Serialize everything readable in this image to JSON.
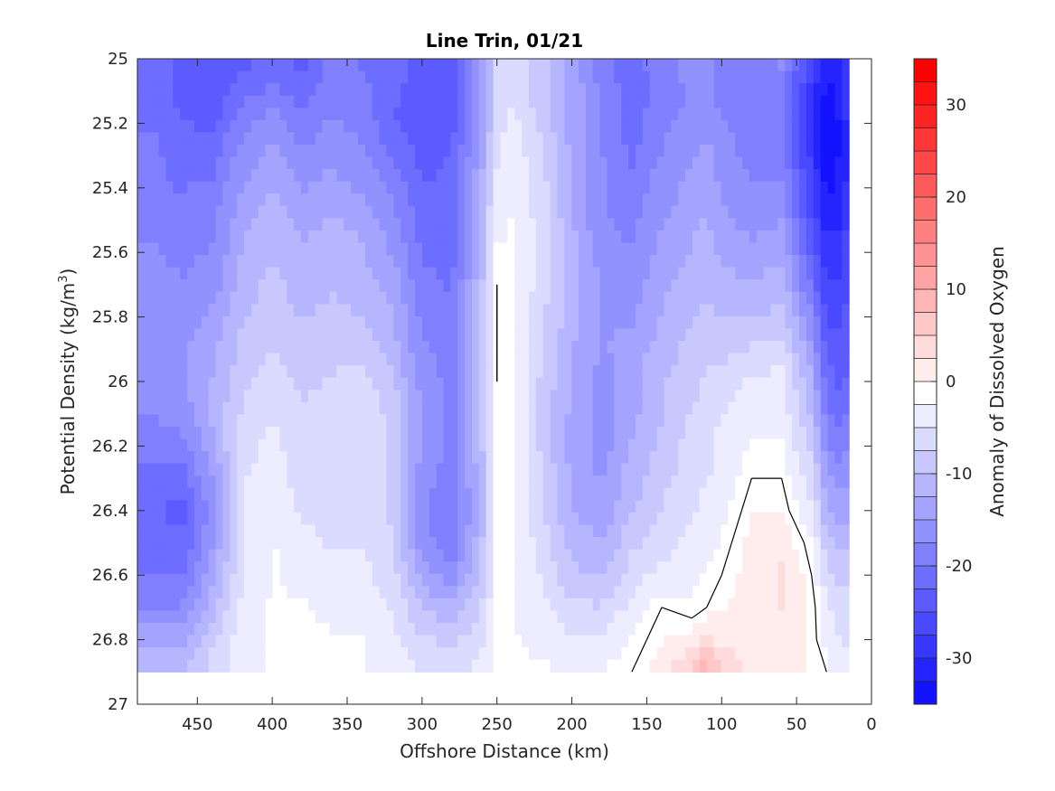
{
  "chart_data": {
    "type": "heatmap",
    "title": "Line Trin, 01/21",
    "xlabel": "Offshore Distance (km)",
    "ylabel": "Potential Density (kg/m",
    "ylabel_sup": "3",
    "ylabel_close": ")",
    "colorbar_label": "Anomaly of Dissolved Oxygen",
    "xlim": [
      490,
      0
    ],
    "ylim": [
      25,
      27
    ],
    "x_reversed": true,
    "y_reversed": true,
    "x_ticks": [
      450,
      400,
      350,
      300,
      250,
      200,
      150,
      100,
      50,
      0
    ],
    "y_ticks": [
      25,
      25.2,
      25.4,
      25.6,
      25.8,
      26,
      26.2,
      26.4,
      26.6,
      26.8,
      27
    ],
    "y_tick_labels": [
      "25",
      "25.2",
      "25.4",
      "25.6",
      "25.8",
      "26",
      "26.2",
      "26.4",
      "26.6",
      "26.8",
      "27"
    ],
    "colorbar_ticks": [
      30,
      20,
      10,
      0,
      -10,
      -20,
      -30
    ],
    "clim": [
      -35,
      35
    ],
    "colormap": "blue-white-red",
    "colors": {
      "min": "#0000ff",
      "mid": "#ffffff",
      "max": "#ff0000"
    },
    "x": [
      480,
      460,
      440,
      420,
      400,
      380,
      360,
      340,
      320,
      300,
      280,
      260,
      250,
      240,
      220,
      200,
      180,
      160,
      140,
      120,
      110,
      100,
      80,
      60,
      40,
      30,
      20,
      15
    ],
    "y": [
      25.0,
      25.1,
      25.2,
      25.3,
      25.4,
      25.5,
      25.6,
      25.7,
      25.8,
      25.9,
      26.0,
      26.1,
      26.2,
      26.3,
      26.4,
      26.5,
      26.6,
      26.7,
      26.8,
      26.9
    ],
    "z": [
      [
        -20,
        -22,
        -23,
        -22,
        -21,
        -22,
        -18,
        -19,
        -20,
        -22,
        -22,
        -12,
        -6,
        -5,
        -8,
        -12,
        -18,
        -20,
        -17,
        -15,
        -15,
        -17,
        -18,
        -16,
        -26,
        -31,
        -29,
        -25
      ],
      [
        -20,
        -22,
        -23,
        -20,
        -18,
        -20,
        -17,
        -18,
        -21,
        -22,
        -22,
        -13,
        -6,
        -4,
        -8,
        -12,
        -17,
        -20,
        -18,
        -16,
        -16,
        -17,
        -18,
        -17,
        -27,
        -32,
        -30,
        -26
      ],
      [
        -19,
        -21,
        -22,
        -17,
        -15,
        -18,
        -16,
        -17,
        -21,
        -23,
        -22,
        -13,
        -5,
        -3,
        -7,
        -12,
        -17,
        -20,
        -17,
        -15,
        -14,
        -16,
        -18,
        -17,
        -28,
        -33,
        -31,
        -27
      ],
      [
        -18,
        -20,
        -20,
        -15,
        -13,
        -16,
        -14,
        -16,
        -19,
        -22,
        -21,
        -12,
        -4,
        -2,
        -6,
        -12,
        -16,
        -19,
        -16,
        -14,
        -13,
        -15,
        -17,
        -17,
        -27,
        -33,
        -31,
        -28
      ],
      [
        -18,
        -19,
        -18,
        -14,
        -11,
        -14,
        -13,
        -14,
        -17,
        -21,
        -21,
        -11,
        -3,
        -2,
        -5,
        -11,
        -16,
        -18,
        -15,
        -13,
        -12,
        -14,
        -16,
        -16,
        -26,
        -32,
        -30,
        -27
      ],
      [
        -17,
        -18,
        -17,
        -12,
        -10,
        -12,
        -11,
        -12,
        -15,
        -20,
        -20,
        -10,
        -2,
        -1,
        -5,
        -11,
        -16,
        -17,
        -14,
        -12,
        -11,
        -13,
        -15,
        -14,
        -24,
        -30,
        -29,
        -25
      ],
      [
        -16,
        -17,
        -16,
        -11,
        -9,
        -11,
        -10,
        -11,
        -14,
        -19,
        -20,
        -10,
        -1,
        -1,
        -5,
        -10,
        -15,
        -16,
        -13,
        -11,
        -10,
        -12,
        -13,
        -12,
        -22,
        -28,
        -27,
        -24
      ],
      [
        -15,
        -16,
        -15,
        -10,
        -8,
        -10,
        -9,
        -10,
        -12,
        -18,
        -19,
        -9,
        0,
        -1,
        -5,
        -10,
        -14,
        -15,
        -12,
        -10,
        -9,
        -10,
        -11,
        -10,
        -19,
        -26,
        -26,
        -23
      ],
      [
        -14,
        -15,
        -13,
        -9,
        -7,
        -9,
        -8,
        -9,
        -11,
        -17,
        -18,
        -9,
        0,
        -1,
        -6,
        -10,
        -14,
        -14,
        -11,
        -9,
        -8,
        -9,
        -9,
        -8,
        -16,
        -24,
        -25,
        -22
      ],
      [
        -14,
        -14,
        -12,
        -8,
        -6,
        -8,
        -7,
        -7,
        -10,
        -16,
        -17,
        -8,
        0,
        -1,
        -6,
        -11,
        -14,
        -13,
        -10,
        -8,
        -7,
        -7,
        -6,
        -5,
        -13,
        -22,
        -23,
        -21
      ],
      [
        -15,
        -14,
        -11,
        -7,
        -5,
        -7,
        -6,
        -5,
        -8,
        -15,
        -17,
        -8,
        0,
        -1,
        -7,
        -11,
        -15,
        -12,
        -9,
        -7,
        -6,
        -5,
        -3,
        -3,
        -11,
        -20,
        -22,
        -20
      ],
      [
        -16,
        -15,
        -11,
        -6,
        -4,
        -6,
        -5,
        -4,
        -7,
        -14,
        -17,
        -8,
        -1,
        -1,
        -7,
        -12,
        -15,
        -12,
        -9,
        -6,
        -5,
        -4,
        -2,
        -2,
        -9,
        -18,
        -20,
        -18
      ],
      [
        -18,
        -17,
        -12,
        -5,
        -3,
        -5,
        -5,
        -4,
        -7,
        -14,
        -17,
        -9,
        -1,
        -1,
        -7,
        -12,
        -15,
        -11,
        -8,
        -5,
        -4,
        -3,
        -1,
        -1,
        -7,
        -16,
        -18,
        -16
      ],
      [
        -20,
        -20,
        -14,
        -4,
        -2,
        -5,
        -5,
        -4,
        -7,
        -15,
        -18,
        -10,
        -1,
        -1,
        -6,
        -12,
        -14,
        -10,
        -7,
        -5,
        -4,
        -3,
        0,
        0,
        -5,
        -13,
        -15,
        -14
      ],
      [
        -21,
        -22,
        -15,
        -4,
        -2,
        -4,
        -5,
        -4,
        -7,
        -16,
        -19,
        -10,
        -1,
        -1,
        -6,
        -11,
        -13,
        -9,
        -6,
        -4,
        -3,
        -2,
        1,
        1,
        -3,
        -11,
        -13,
        -12
      ],
      [
        -20,
        -21,
        -14,
        -4,
        -1,
        -3,
        -4,
        -4,
        -6,
        -15,
        -18,
        -9,
        -1,
        -1,
        -5,
        -10,
        -11,
        -7,
        -5,
        -3,
        -2,
        -1,
        2,
        3,
        -1,
        -8,
        -10,
        -9
      ],
      [
        -19,
        -19,
        -12,
        -4,
        -1,
        -2,
        -3,
        -3,
        -5,
        -12,
        -15,
        -8,
        -1,
        -1,
        -4,
        -8,
        -9,
        -5,
        -3,
        -2,
        -1,
        0,
        2,
        4,
        0,
        -5,
        -7,
        -7
      ],
      [
        -16,
        -16,
        -10,
        -3,
        -1,
        -1,
        -2,
        -2,
        -4,
        -9,
        -11,
        -6,
        -1,
        -1,
        -3,
        -6,
        -6,
        -3,
        0,
        -1,
        0,
        1,
        3,
        4,
        1,
        -3,
        -5,
        -5
      ],
      [
        -12,
        -12,
        -7,
        -2,
        -1,
        0,
        -1,
        -1,
        -3,
        -6,
        -7,
        -4,
        -1,
        -1,
        -2,
        -3,
        -3,
        -1,
        1,
        2,
        4,
        3,
        3,
        3,
        1,
        -2,
        -4,
        -4
      ],
      [
        -9,
        -9,
        -5,
        -2,
        -1,
        -1,
        -1,
        -1,
        -2,
        -4,
        -4,
        -3,
        -1,
        0,
        -1,
        -1,
        -1,
        0,
        3,
        7,
        11,
        6,
        3,
        2,
        1,
        0,
        -3,
        -3
      ]
    ]
  }
}
